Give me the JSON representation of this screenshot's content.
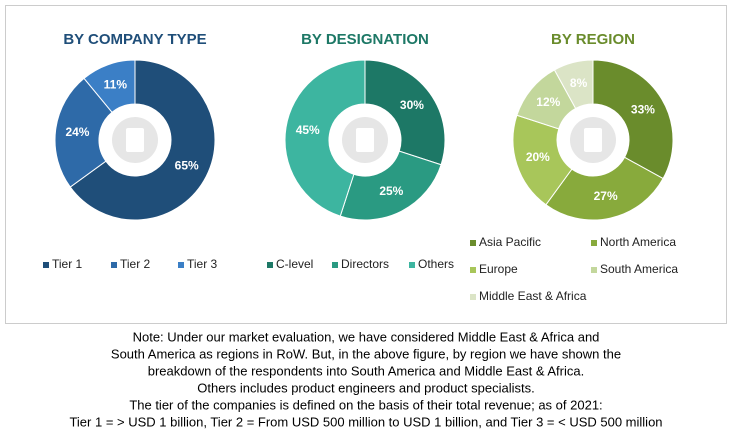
{
  "chart_data": [
    {
      "type": "pie",
      "title": "BY COMPANY TYPE",
      "categories": [
        "Tier 1",
        "Tier 2",
        "Tier 3"
      ],
      "values": [
        65,
        24,
        11
      ],
      "value_labels": [
        "65%",
        "24%",
        "11%"
      ],
      "colors": [
        "#1f4e79",
        "#2e6aa8",
        "#3b7fc6"
      ]
    },
    {
      "type": "pie",
      "title": "BY DESIGNATION",
      "categories": [
        "C-level",
        "Directors",
        "Others"
      ],
      "values": [
        30,
        25,
        45
      ],
      "value_labels": [
        "30%",
        "25%",
        "45%"
      ],
      "colors": [
        "#1d7866",
        "#2a9a82",
        "#3db5a0"
      ]
    },
    {
      "type": "pie",
      "title": "BY REGION",
      "categories": [
        "Asia Pacific",
        "North America",
        "Europe",
        "South America",
        "Middle East & Africa"
      ],
      "values": [
        33,
        27,
        20,
        12,
        8
      ],
      "value_labels": [
        "33%",
        "27%",
        "20%",
        "12%",
        "8%"
      ],
      "colors": [
        "#6a8c2c",
        "#88aa3c",
        "#a8c65a",
        "#c3d79c",
        "#dbe4c6"
      ]
    }
  ],
  "notes": [
    "Note: Under our market evaluation, we have considered Middle East & Africa and",
    "South America as regions in RoW. But, in the above figure, by region we have shown the",
    "breakdown of the respondents into South America and Middle East & Africa.",
    "Others includes product engineers and product specialists.",
    "The tier of the companies is defined on the basis of their total revenue; as of 2021:",
    "Tier 1 = > USD 1 billion, Tier 2 = From USD 500 million to USD 1 billion, and Tier 3 = < USD 500 million"
  ]
}
